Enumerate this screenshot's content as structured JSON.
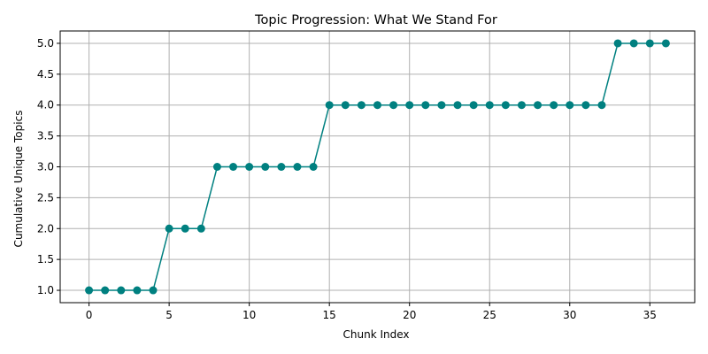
{
  "chart_data": {
    "type": "line",
    "title": "Topic Progression: What We Stand For",
    "xlabel": "Chunk Index",
    "ylabel": "Cumulative Unique Topics",
    "xlim": [
      -1.8,
      37.8
    ],
    "ylim": [
      0.8,
      5.2
    ],
    "x_ticks": [
      0,
      5,
      10,
      15,
      20,
      25,
      30,
      35
    ],
    "y_ticks": [
      1.0,
      1.5,
      2.0,
      2.5,
      3.0,
      3.5,
      4.0,
      4.5,
      5.0
    ],
    "x_tick_labels": [
      "0",
      "5",
      "10",
      "15",
      "20",
      "25",
      "30",
      "35"
    ],
    "y_tick_labels": [
      "1.0",
      "1.5",
      "2.0",
      "2.5",
      "3.0",
      "3.5",
      "4.0",
      "4.5",
      "5.0"
    ],
    "grid": true,
    "series": [
      {
        "color": "#008080",
        "marker": "circle",
        "x": [
          0,
          1,
          2,
          3,
          4,
          5,
          6,
          7,
          8,
          9,
          10,
          11,
          12,
          13,
          14,
          15,
          16,
          17,
          18,
          19,
          20,
          21,
          22,
          23,
          24,
          25,
          26,
          27,
          28,
          29,
          30,
          31,
          32,
          33,
          34,
          35,
          36
        ],
        "values": [
          1,
          1,
          1,
          1,
          1,
          2,
          2,
          2,
          3,
          3,
          3,
          3,
          3,
          3,
          3,
          4,
          4,
          4,
          4,
          4,
          4,
          4,
          4,
          4,
          4,
          4,
          4,
          4,
          4,
          4,
          4,
          4,
          4,
          5,
          5,
          5,
          5
        ]
      }
    ]
  }
}
